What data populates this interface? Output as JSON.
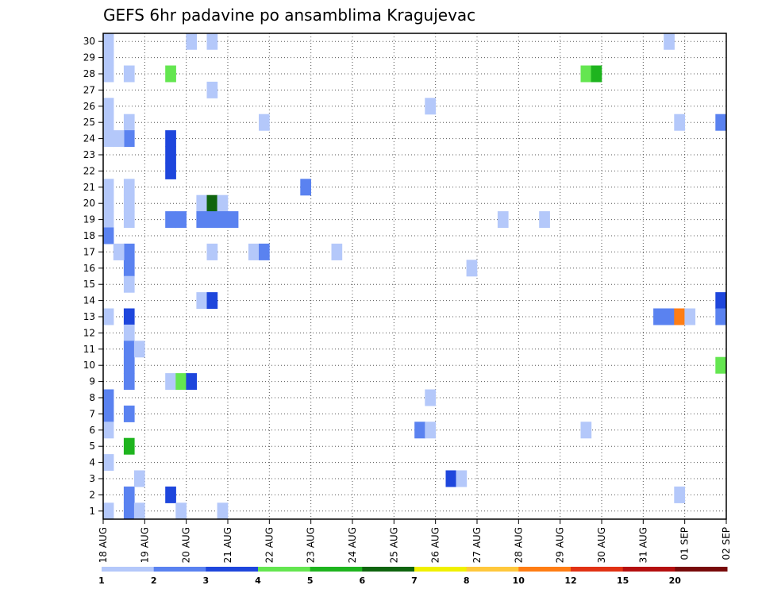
{
  "chart_data": {
    "type": "heatmap",
    "title": "GEFS 6hr padavine po ansamblima Kragujevac",
    "xlabel": "",
    "ylabel": "",
    "x_ticks": [
      "18 AUG",
      "19 AUG",
      "20 AUG",
      "21 AUG",
      "22 AUG",
      "23 AUG",
      "24 AUG",
      "25 AUG",
      "26 AUG",
      "27 AUG",
      "28 AUG",
      "29 AUG",
      "30 AUG",
      "31 AUG",
      "01 SEP",
      "02 SEP"
    ],
    "y_ticks": [
      "1",
      "2",
      "3",
      "4",
      "5",
      "6",
      "7",
      "8",
      "9",
      "10",
      "11",
      "12",
      "13",
      "14",
      "15",
      "16",
      "17",
      "18",
      "19",
      "20",
      "21",
      "22",
      "23",
      "24",
      "25",
      "26",
      "27",
      "28",
      "29",
      "30"
    ],
    "xlim_steps": [
      0,
      60
    ],
    "ylim_members": [
      0.5,
      30.5
    ],
    "grid": true,
    "colorbar": {
      "position": "bottom",
      "labels": [
        "1",
        "2",
        "3",
        "4",
        "5",
        "6",
        "7",
        "8",
        "10",
        "12",
        "15",
        "20"
      ],
      "colors": [
        "#b4c8fa",
        "#5a82f0",
        "#1e46dc",
        "#64e650",
        "#1eb41e",
        "#0f640f",
        "#f0f000",
        "#ffc83c",
        "#ff7d14",
        "#e13214",
        "#b40f0f",
        "#780a0a"
      ]
    },
    "cells": [
      [
        0.5,
        30,
        1
      ],
      [
        0.5,
        29,
        1
      ],
      [
        0.5,
        28,
        1
      ],
      [
        0.5,
        26,
        1
      ],
      [
        0.5,
        25,
        1
      ],
      [
        0.5,
        24,
        1
      ],
      [
        0.5,
        21,
        1
      ],
      [
        0.5,
        20,
        1
      ],
      [
        0.5,
        19,
        1
      ],
      [
        0.5,
        18,
        2
      ],
      [
        0.5,
        13,
        1
      ],
      [
        0.5,
        8,
        2
      ],
      [
        0.5,
        7,
        2
      ],
      [
        0.5,
        6,
        1
      ],
      [
        0.5,
        4,
        1
      ],
      [
        0.5,
        1,
        1
      ],
      [
        2.5,
        28,
        1
      ],
      [
        2.5,
        25,
        1
      ],
      [
        2.5,
        24,
        2
      ],
      [
        2.5,
        21,
        1
      ],
      [
        2.5,
        20,
        1
      ],
      [
        2.5,
        19,
        1
      ],
      [
        2.5,
        17,
        2
      ],
      [
        2.5,
        16,
        2
      ],
      [
        2.5,
        15,
        1
      ],
      [
        2.5,
        13,
        3
      ],
      [
        2.5,
        12,
        1
      ],
      [
        2.5,
        11,
        2
      ],
      [
        2.5,
        10,
        2
      ],
      [
        2.5,
        9,
        2
      ],
      [
        2.5,
        7,
        2
      ],
      [
        2.5,
        5,
        5
      ],
      [
        2.5,
        2,
        2
      ],
      [
        2.5,
        1,
        2
      ],
      [
        1.5,
        24,
        1
      ],
      [
        1.5,
        17,
        1
      ],
      [
        3.5,
        11,
        1
      ],
      [
        3.5,
        3,
        1
      ],
      [
        3.5,
        1,
        1
      ],
      [
        6.5,
        28,
        4
      ],
      [
        6.5,
        24,
        3
      ],
      [
        6.5,
        23,
        3
      ],
      [
        6.5,
        22,
        3
      ],
      [
        6.5,
        19,
        2
      ],
      [
        6.5,
        9,
        1
      ],
      [
        6.5,
        2,
        3
      ],
      [
        7.5,
        19,
        2
      ],
      [
        7.5,
        9,
        4
      ],
      [
        7.5,
        1,
        1
      ],
      [
        8.5,
        9,
        3
      ],
      [
        8.5,
        30,
        1
      ],
      [
        9.5,
        20,
        1
      ],
      [
        9.5,
        19,
        2
      ],
      [
        9.5,
        14,
        1
      ],
      [
        10.5,
        30,
        1
      ],
      [
        10.5,
        27,
        1
      ],
      [
        10.5,
        20,
        6
      ],
      [
        10.5,
        19,
        2
      ],
      [
        10.5,
        17,
        1
      ],
      [
        10.5,
        14,
        3
      ],
      [
        11.5,
        20,
        1
      ],
      [
        11.5,
        19,
        2
      ],
      [
        11.5,
        1,
        1
      ],
      [
        12.5,
        19,
        2
      ],
      [
        14.5,
        17,
        1
      ],
      [
        15.5,
        17,
        2
      ],
      [
        15.5,
        25,
        1
      ],
      [
        19.5,
        21,
        2
      ],
      [
        22.5,
        17,
        1
      ],
      [
        30.5,
        6,
        2
      ],
      [
        31.5,
        26,
        1
      ],
      [
        31.5,
        8,
        1
      ],
      [
        31.5,
        6,
        1
      ],
      [
        33.5,
        3,
        3
      ],
      [
        34.5,
        3,
        1
      ],
      [
        35.5,
        16,
        1
      ],
      [
        38.5,
        19,
        1
      ],
      [
        42.5,
        19,
        1
      ],
      [
        46.5,
        28,
        4
      ],
      [
        46.5,
        6,
        1
      ],
      [
        47.5,
        28,
        5
      ],
      [
        54.5,
        30,
        1
      ],
      [
        53.5,
        13,
        2
      ],
      [
        54.5,
        13,
        2
      ],
      [
        55.5,
        25,
        1
      ],
      [
        55.5,
        13,
        9
      ],
      [
        55.5,
        2,
        1
      ],
      [
        56.5,
        13,
        1
      ],
      [
        59.5,
        25,
        2
      ],
      [
        59.5,
        14,
        3
      ],
      [
        60,
        13,
        2
      ],
      [
        60,
        10,
        4
      ]
    ]
  }
}
